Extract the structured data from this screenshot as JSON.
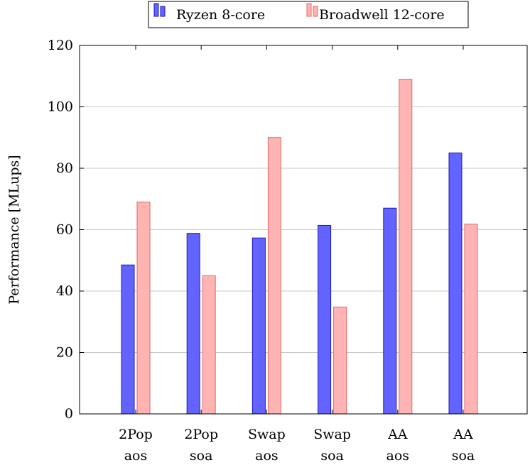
{
  "chart_data": {
    "type": "bar",
    "categories": [
      [
        "2Pop",
        "aos"
      ],
      [
        "2Pop",
        "soa"
      ],
      [
        "Swap",
        "aos"
      ],
      [
        "Swap",
        "soa"
      ],
      [
        "AA",
        "aos"
      ],
      [
        "AA",
        "soa"
      ]
    ],
    "series": [
      {
        "name": "Ryzen 8-core",
        "values": [
          48.5,
          58.8,
          57.3,
          61.4,
          67.0,
          85.0
        ],
        "fill": "#6363ff",
        "stroke": "#1a1ab3"
      },
      {
        "name": "Broadwell 12-core",
        "values": [
          69.0,
          45.0,
          90.0,
          34.8,
          109.0,
          61.8
        ],
        "fill": "#ffb3b3",
        "stroke": "#e06a6a"
      }
    ],
    "ylabel": "Performance [MLups]",
    "xlabel": "",
    "title": "",
    "ylim": [
      0,
      120
    ],
    "yticks": [
      0,
      20,
      40,
      60,
      80,
      100,
      120
    ],
    "grid": true,
    "legend_position": "top-center"
  }
}
